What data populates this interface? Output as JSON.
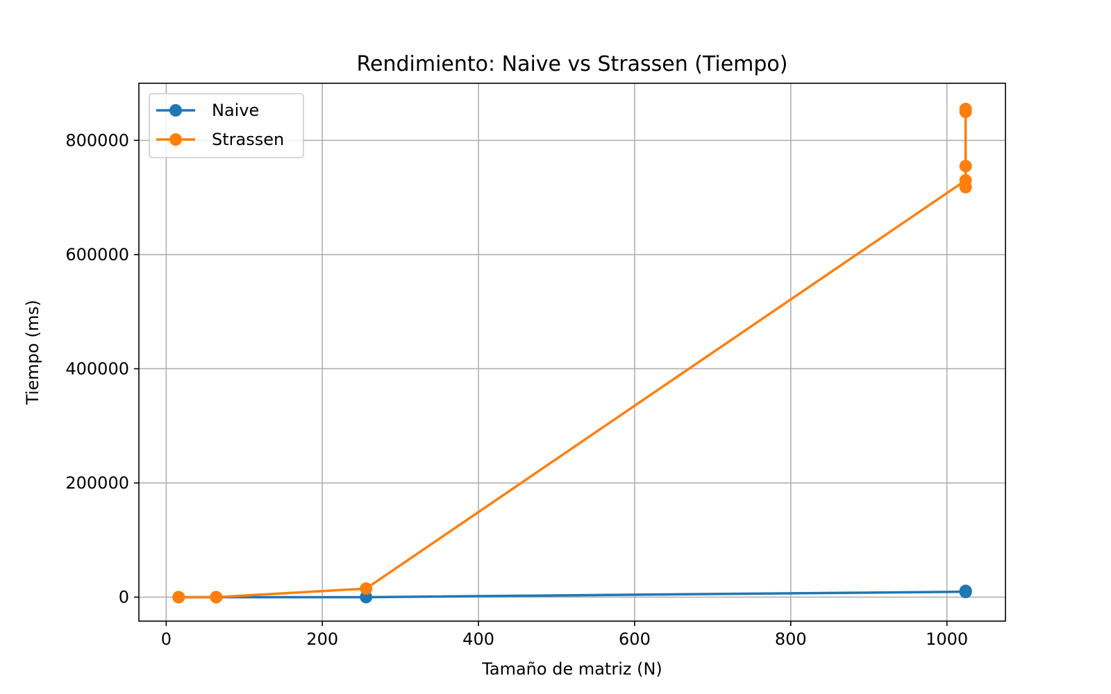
{
  "chart_data": {
    "type": "line",
    "title": "Rendimiento: Naive vs Strassen (Tiempo)",
    "xlabel": "Tamaño de matriz (N)",
    "ylabel": "Tiempo (ms)",
    "xlim": [
      -35,
      1075
    ],
    "ylim": [
      -42000,
      900000
    ],
    "xticks": [
      0,
      200,
      400,
      600,
      800,
      1000
    ],
    "yticks": [
      0,
      200000,
      400000,
      600000,
      800000
    ],
    "grid": true,
    "legend_position": "top-left",
    "series": [
      {
        "name": "Naive",
        "color": "#1f77b4",
        "x": [
          16,
          64,
          256,
          1024,
          1024,
          1024,
          1024,
          1024
        ],
        "y": [
          0,
          0,
          0,
          9500,
          10000,
          10500,
          11000,
          9000
        ]
      },
      {
        "name": "Strassen",
        "color": "#ff7f0e",
        "x": [
          16,
          64,
          256,
          1024,
          1024,
          1024,
          1024,
          1024
        ],
        "y": [
          0,
          0,
          15000,
          730000,
          718000,
          755000,
          850000,
          855000
        ]
      }
    ]
  }
}
